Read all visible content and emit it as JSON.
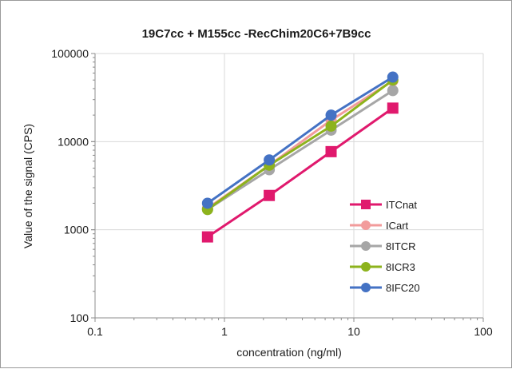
{
  "chart_data": {
    "type": "line",
    "title": "19C7cc + M155cc -RecChim20C6+7B9cc",
    "xlabel": "concentration (ng/ml)",
    "ylabel": "Value of the signal (CPS)",
    "x_scale": "log",
    "y_scale": "log",
    "xlim": [
      0.1,
      100
    ],
    "ylim": [
      100,
      100000
    ],
    "x_ticks": [
      "0.1",
      "1",
      "10",
      "100"
    ],
    "y_ticks": [
      "100",
      "1000",
      "10000",
      "100000"
    ],
    "grid": true,
    "legend_position": "right",
    "x": [
      0.74,
      2.22,
      6.67,
      20
    ],
    "series": [
      {
        "name": "ITCnat",
        "color": "#e0196d",
        "marker": "square",
        "values": [
          830,
          2450,
          7700,
          24000
        ]
      },
      {
        "name": "ICart",
        "color": "#f29b9b",
        "marker": "circle",
        "values": [
          1750,
          5400,
          17500,
          49000
        ]
      },
      {
        "name": "8ITCR",
        "color": "#a6a6a6",
        "marker": "circle",
        "values": [
          1700,
          4800,
          13500,
          38000
        ]
      },
      {
        "name": "8ICR3",
        "color": "#8db31c",
        "marker": "circle",
        "values": [
          1700,
          5400,
          15000,
          50000
        ]
      },
      {
        "name": "8IFC20",
        "color": "#4472c4",
        "marker": "circle",
        "values": [
          2000,
          6200,
          20000,
          54000
        ]
      }
    ]
  }
}
